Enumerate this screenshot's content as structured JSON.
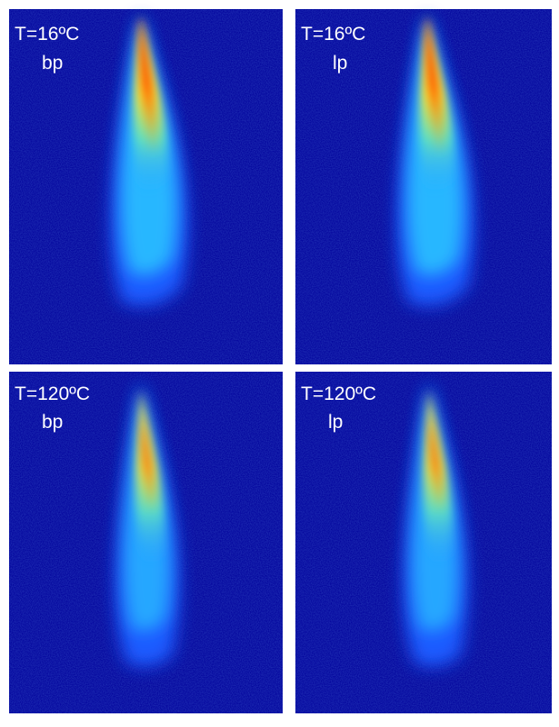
{
  "panels": [
    {
      "temperature": "T=16ºC",
      "mode": "bp"
    },
    {
      "temperature": "T=16ºC",
      "mode": "lp"
    },
    {
      "temperature": "T=120ºC",
      "mode": "bp"
    },
    {
      "temperature": "T=120ºC",
      "mode": "lp"
    }
  ]
}
